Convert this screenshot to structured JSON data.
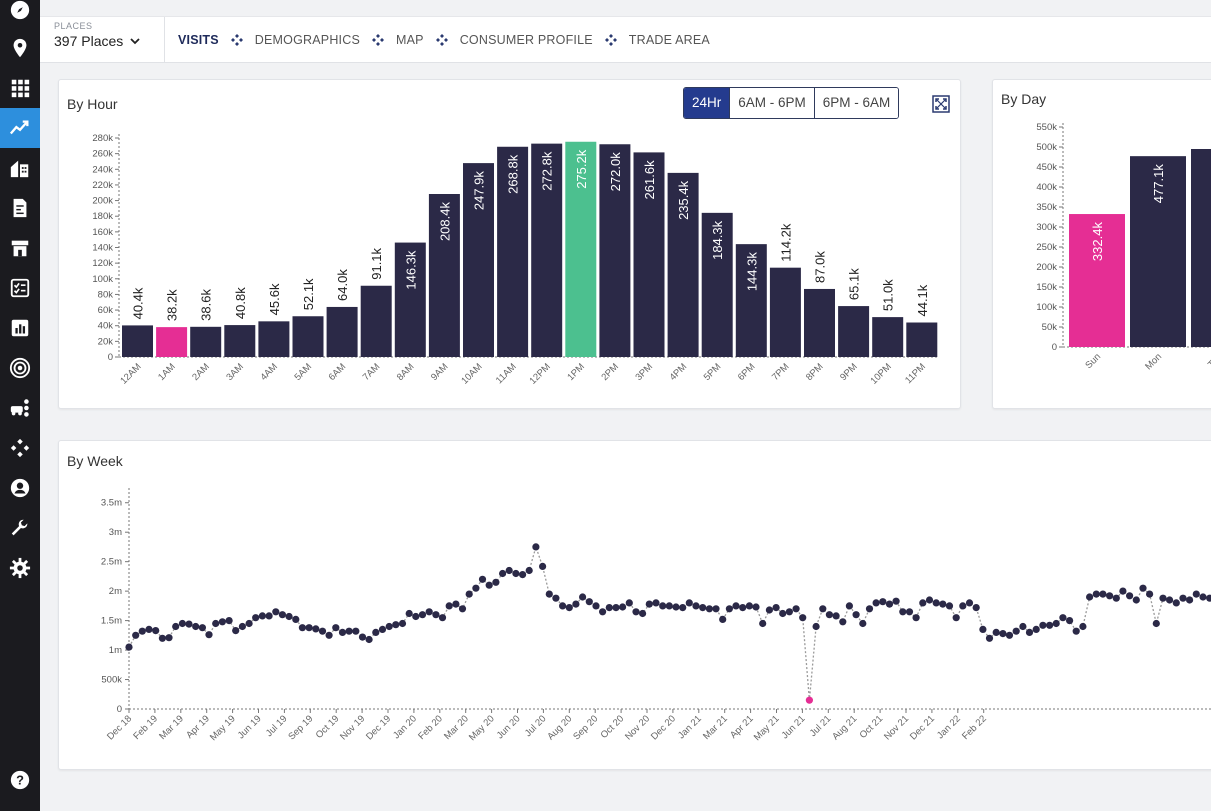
{
  "sidebar": {
    "items": [
      {
        "icon": "compass-icon",
        "active": false
      },
      {
        "icon": "map-pin-icon",
        "active": false
      },
      {
        "icon": "grid-icon",
        "active": false
      },
      {
        "icon": "trend-chart-icon",
        "active": true
      },
      {
        "icon": "buildings-icon",
        "active": false
      },
      {
        "icon": "report-icon",
        "active": false
      },
      {
        "icon": "store-icon",
        "active": false
      },
      {
        "icon": "checklist-icon",
        "active": false
      },
      {
        "icon": "bar-chart-icon",
        "active": false
      },
      {
        "icon": "target-icon",
        "active": false
      },
      {
        "icon": "vehicles-icon",
        "active": false
      },
      {
        "icon": "network-icon",
        "active": false
      },
      {
        "icon": "user-icon",
        "active": false
      },
      {
        "icon": "wrench-icon",
        "active": false
      },
      {
        "icon": "gear-icon",
        "active": false
      },
      {
        "icon": "help-icon",
        "active": false
      }
    ]
  },
  "header": {
    "places_label": "PLACES",
    "places_value": "397 Places",
    "tabs": [
      "VISITS",
      "DEMOGRAPHICS",
      "MAP",
      "CONSUMER PROFILE",
      "TRADE AREA"
    ],
    "active_tab": "VISITS"
  },
  "by_hour": {
    "title": "By Hour",
    "toggle": [
      "24Hr",
      "6AM - 6PM",
      "6PM - 6AM"
    ],
    "active_toggle": "24Hr"
  },
  "by_day": {
    "title": "By Day"
  },
  "by_week": {
    "title": "By Week"
  },
  "colors": {
    "bar": "#2b2947",
    "pink": "#e52e94",
    "green": "#4cc08f",
    "active_blue": "#243b8e",
    "sidebar_active": "#2d8fdd"
  },
  "chart_data": [
    {
      "type": "bar",
      "title": "By Hour",
      "categories": [
        "12AM",
        "1AM",
        "2AM",
        "3AM",
        "4AM",
        "5AM",
        "6AM",
        "7AM",
        "8AM",
        "9AM",
        "10AM",
        "11AM",
        "12PM",
        "1PM",
        "2PM",
        "3PM",
        "4PM",
        "5PM",
        "6PM",
        "7PM",
        "8PM",
        "9PM",
        "10PM",
        "11PM"
      ],
      "values": [
        40.4,
        38.2,
        38.6,
        40.8,
        45.6,
        52.1,
        64.0,
        91.1,
        146.3,
        208.4,
        247.9,
        268.8,
        272.8,
        275.2,
        272.0,
        261.6,
        235.4,
        184.3,
        144.3,
        114.2,
        87.0,
        65.1,
        51.0,
        44.1
      ],
      "labels": [
        "40.4k",
        "38.2k",
        "38.6k",
        "40.8k",
        "45.6k",
        "52.1k",
        "64.0k",
        "91.1k",
        "146.3k",
        "208.4k",
        "247.9k",
        "268.8k",
        "272.8k",
        "275.2k",
        "272.0k",
        "261.6k",
        "235.4k",
        "184.3k",
        "144.3k",
        "114.2k",
        "87.0k",
        "65.1k",
        "51.0k",
        "44.1k"
      ],
      "unit": "k",
      "min_index": 1,
      "max_index": 13,
      "yticks": [
        "0",
        "20k",
        "40k",
        "60k",
        "80k",
        "100k",
        "120k",
        "140k",
        "160k",
        "180k",
        "200k",
        "220k",
        "240k",
        "260k",
        "280k"
      ],
      "ylim": [
        0,
        280
      ]
    },
    {
      "type": "bar",
      "title": "By Day",
      "categories": [
        "Sun",
        "Mon",
        "Tue"
      ],
      "values": [
        332.4,
        477.1,
        495
      ],
      "labels": [
        "332.4k",
        "477.1k",
        ""
      ],
      "min_index": 0,
      "yticks": [
        "0",
        "50k",
        "100k",
        "150k",
        "200k",
        "250k",
        "300k",
        "350k",
        "400k",
        "450k",
        "500k",
        "550k"
      ],
      "ylim": [
        0,
        550
      ]
    },
    {
      "type": "line",
      "title": "By Week",
      "ylim": [
        0,
        3.75
      ],
      "yticks": [
        "0",
        "500k",
        "1m",
        "1.5m",
        "2m",
        "2.5m",
        "3m",
        "3.5m"
      ],
      "xticks": [
        "Dec 18",
        "Feb 19",
        "Mar 19",
        "Apr 19",
        "May 19",
        "Jun 19",
        "Jul 19",
        "Sep 19",
        "Oct 19",
        "Nov 19",
        "Dec 19",
        "Jan 20",
        "Feb 20",
        "Mar 20",
        "May 20",
        "Jun 20",
        "Jul 20",
        "Aug 20",
        "Sep 20",
        "Oct 20",
        "Nov 20",
        "Dec 20",
        "Jan 21",
        "Mar 21",
        "Apr 21",
        "May 21",
        "Jun 21",
        "Jul 21",
        "Aug 21",
        "Oct 21",
        "Nov 21",
        "Dec 21",
        "Jan 22",
        "Feb 22"
      ],
      "values": [
        1.05,
        1.25,
        1.32,
        1.35,
        1.33,
        1.2,
        1.21,
        1.4,
        1.45,
        1.44,
        1.4,
        1.38,
        1.26,
        1.45,
        1.48,
        1.5,
        1.33,
        1.4,
        1.45,
        1.55,
        1.58,
        1.58,
        1.65,
        1.6,
        1.57,
        1.52,
        1.38,
        1.38,
        1.36,
        1.32,
        1.25,
        1.38,
        1.3,
        1.32,
        1.32,
        1.22,
        1.18,
        1.3,
        1.35,
        1.4,
        1.43,
        1.45,
        1.62,
        1.57,
        1.6,
        1.65,
        1.6,
        1.55,
        1.75,
        1.78,
        1.7,
        1.95,
        2.05,
        2.2,
        2.1,
        2.15,
        2.3,
        2.35,
        2.3,
        2.28,
        2.35,
        2.75,
        2.42,
        1.95,
        1.88,
        1.75,
        1.72,
        1.78,
        1.9,
        1.82,
        1.75,
        1.65,
        1.72,
        1.72,
        1.73,
        1.8,
        1.65,
        1.62,
        1.78,
        1.8,
        1.75,
        1.75,
        1.73,
        1.72,
        1.8,
        1.75,
        1.72,
        1.7,
        1.7,
        1.52,
        1.7,
        1.75,
        1.72,
        1.75,
        1.73,
        1.45,
        1.68,
        1.72,
        1.62,
        1.65,
        1.7,
        1.55,
        0.15,
        1.4,
        1.7,
        1.6,
        1.58,
        1.48,
        1.75,
        1.6,
        1.45,
        1.7,
        1.8,
        1.82,
        1.78,
        1.83,
        1.65,
        1.65,
        1.55,
        1.8,
        1.85,
        1.8,
        1.78,
        1.75,
        1.55,
        1.75,
        1.8,
        1.72,
        1.35,
        1.2,
        1.3,
        1.28,
        1.25,
        1.32,
        1.4,
        1.3,
        1.35,
        1.42,
        1.42,
        1.45,
        1.55,
        1.5,
        1.32,
        1.4,
        1.9,
        1.95,
        1.95,
        1.92,
        1.88,
        2.0,
        1.92,
        1.85,
        2.05,
        1.95,
        1.45,
        1.88,
        1.85,
        1.8,
        1.88,
        1.85,
        1.95,
        1.9,
        1.88,
        2.0,
        2.0
      ],
      "min_index": 102,
      "max_index": 61
    }
  ]
}
